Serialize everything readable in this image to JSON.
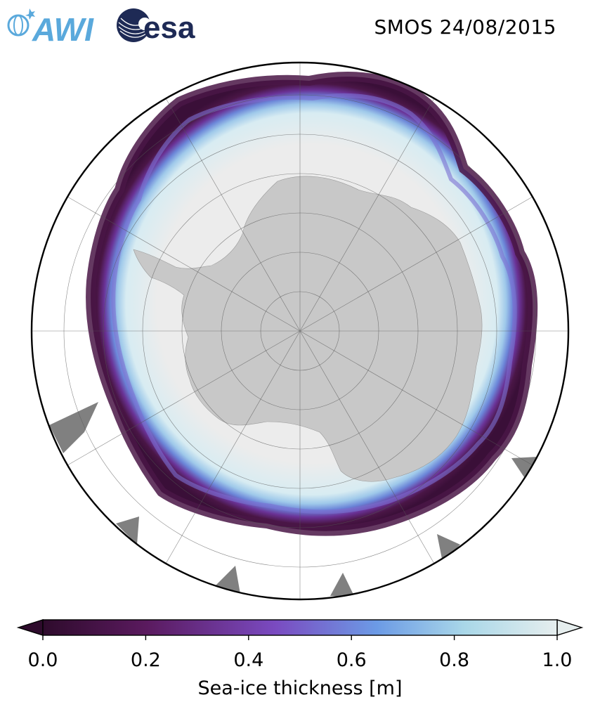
{
  "header": {
    "title": "SMOS 24/08/2015",
    "logos": [
      {
        "name": "awi-logo",
        "text": "AWI",
        "color": "#5aa9dc"
      },
      {
        "name": "esa-logo",
        "text": "esa",
        "color": "#1e2a55"
      }
    ]
  },
  "map": {
    "projection": "south-polar-stereographic",
    "land_color": "#c8c8c8",
    "thick_ice_color": "#ececec",
    "nodata_color": "#808080",
    "ocean_color": "#ffffff"
  },
  "colorbar": {
    "label": "Sea-ice thickness [m]",
    "min": 0.0,
    "max": 1.0,
    "ticks": [
      "0.0",
      "0.2",
      "0.4",
      "0.6",
      "0.8",
      "1.0"
    ],
    "extend": "both",
    "colors": [
      "#2e0b2c",
      "#5a1a5e",
      "#7a4ac0",
      "#6c9be6",
      "#a9d7e8",
      "#e6eeee"
    ]
  }
}
